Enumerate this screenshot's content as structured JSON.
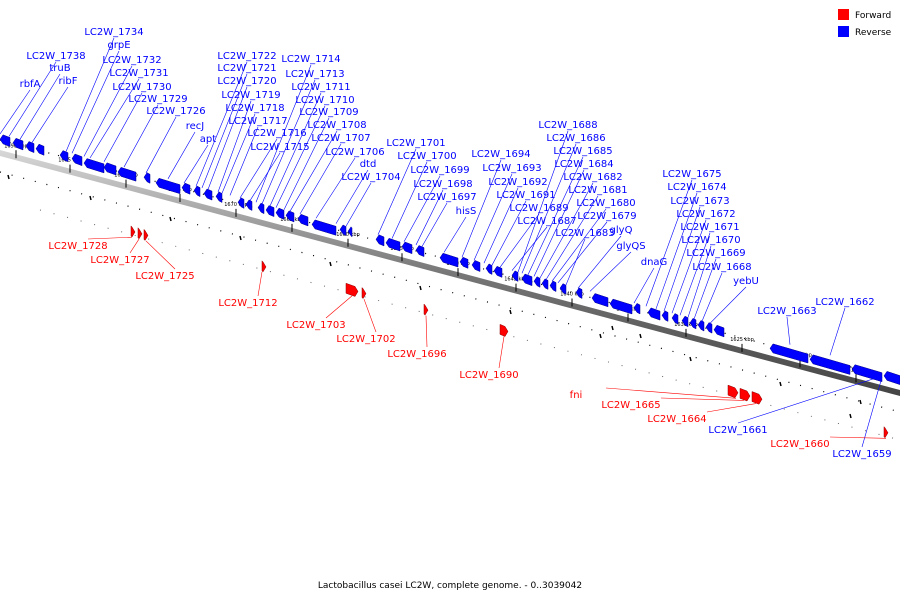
{
  "caption": "Lactobacillus casei LC2W, complete genome. - 0..3039042",
  "legend": [
    {
      "label": "Forward",
      "color": "#ff0000"
    },
    {
      "label": "Reverse",
      "color": "#0000ff"
    }
  ],
  "colors": {
    "forward": "#ff0000",
    "reverse": "#0000ff",
    "backbone": "#888888"
  },
  "ticks": [
    "1690 kbp",
    "1685 kbp",
    "1680 kbp",
    "1675 kbp",
    "1670 kbp",
    "1665 kbp",
    "1660 kbp",
    "1655 kbp",
    "1650 kbp",
    "1645 kbp",
    "1640 kbp",
    "1635 kbp",
    "1630 kbp",
    "1625 kbp",
    "1620 kbp",
    "1615 kbp"
  ],
  "reverse_genes": [
    "rbfA",
    "LC2W_1738",
    "truB",
    "ribF",
    "LC2W_1734",
    "grpE",
    "LC2W_1732",
    "LC2W_1731",
    "LC2W_1730",
    "LC2W_1729",
    "LC2W_1726",
    "recJ",
    "apt",
    "LC2W_1722",
    "LC2W_1721",
    "LC2W_1720",
    "LC2W_1719",
    "LC2W_1718",
    "LC2W_1717",
    "LC2W_1716",
    "LC2W_1715",
    "LC2W_1714",
    "LC2W_1713",
    "LC2W_1711",
    "LC2W_1710",
    "LC2W_1709",
    "LC2W_1708",
    "LC2W_1707",
    "LC2W_1706",
    "dtd",
    "LC2W_1704",
    "LC2W_1701",
    "LC2W_1700",
    "LC2W_1699",
    "LC2W_1698",
    "LC2W_1697",
    "hisS",
    "LC2W_1694",
    "LC2W_1693",
    "LC2W_1692",
    "LC2W_1691",
    "LC2W_1689",
    "LC2W_1687",
    "LC2W_1688",
    "LC2W_1686",
    "LC2W_1685",
    "LC2W_1684",
    "LC2W_1682",
    "LC2W_1681",
    "LC2W_1680",
    "LC2W_1679",
    "LC2W_1683",
    "glyQ",
    "glyQS",
    "dnaG",
    "LC2W_1675",
    "LC2W_1674",
    "LC2W_1673",
    "LC2W_1672",
    "LC2W_1671",
    "LC2W_1670",
    "LC2W_1669",
    "LC2W_1668",
    "yebU",
    "LC2W_1663",
    "LC2W_1662",
    "LC2W_1661",
    "LC2W_1659"
  ],
  "forward_genes": [
    "LC2W_1728",
    "LC2W_1727",
    "LC2W_1725",
    "LC2W_1712",
    "LC2W_1703",
    "LC2W_1702",
    "LC2W_1696",
    "LC2W_1690",
    "fni",
    "LC2W_1665",
    "LC2W_1664",
    "LC2W_1660"
  ]
}
